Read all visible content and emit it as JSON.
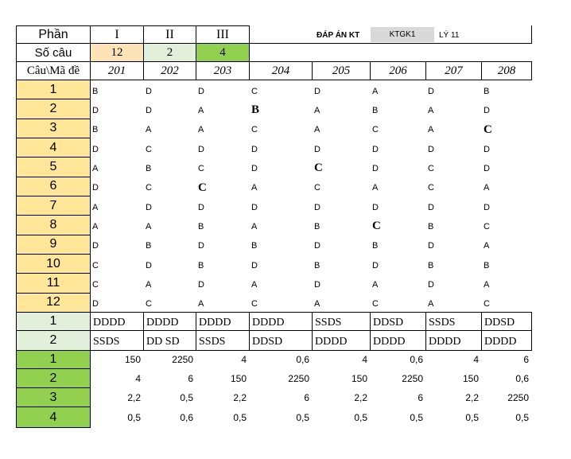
{
  "header": {
    "part_label": "Phần",
    "parts": [
      "I",
      "II",
      "III"
    ],
    "title": "ĐÁP ÁN KT",
    "exam": "KTGK1",
    "subject": "LÝ 11"
  },
  "count_row": {
    "label": "Số câu",
    "counts": [
      12,
      2,
      4
    ]
  },
  "code_row": {
    "label": "Câu\\Mã đề",
    "codes": [
      "201",
      "202",
      "203",
      "204",
      "205",
      "206",
      "207",
      "208"
    ]
  },
  "mc": {
    "rows": [
      {
        "question": "1",
        "answers": [
          "B",
          "D",
          "D",
          "C",
          "D",
          "A",
          "D",
          "B"
        ]
      },
      {
        "question": "2",
        "answers": [
          "D",
          "D",
          "A",
          "B",
          "A",
          "B",
          "A",
          "D"
        ]
      },
      {
        "question": "3",
        "answers": [
          "B",
          "A",
          "A",
          "C",
          "A",
          "C",
          "A",
          "C"
        ]
      },
      {
        "question": "4",
        "answers": [
          "D",
          "C",
          "D",
          "D",
          "D",
          "D",
          "D",
          "D"
        ]
      },
      {
        "question": "5",
        "answers": [
          "A",
          "B",
          "C",
          "D",
          "C",
          "D",
          "C",
          "D"
        ]
      },
      {
        "question": "6",
        "answers": [
          "D",
          "C",
          "C",
          "A",
          "C",
          "A",
          "C",
          "A"
        ]
      },
      {
        "question": "7",
        "answers": [
          "A",
          "D",
          "D",
          "D",
          "D",
          "D",
          "D",
          "D"
        ]
      },
      {
        "question": "8",
        "answers": [
          "A",
          "A",
          "B",
          "A",
          "B",
          "C",
          "B",
          "C"
        ]
      },
      {
        "question": "9",
        "answers": [
          "D",
          "B",
          "D",
          "B",
          "D",
          "B",
          "D",
          "A"
        ]
      },
      {
        "question": "10",
        "answers": [
          "C",
          "D",
          "B",
          "D",
          "B",
          "D",
          "B",
          "B"
        ]
      },
      {
        "question": "11",
        "answers": [
          "C",
          "A",
          "D",
          "A",
          "D",
          "A",
          "D",
          "A"
        ]
      },
      {
        "question": "12",
        "answers": [
          "D",
          "C",
          "A",
          "C",
          "A",
          "C",
          "A",
          "C"
        ]
      }
    ]
  },
  "tf": {
    "rows": [
      {
        "question": "1",
        "answers": [
          "DDDD",
          "DDDD",
          "DDDD",
          "DDDD",
          "SSDS",
          "DDSD",
          "SSDS",
          "DDSD"
        ]
      },
      {
        "question": "2",
        "answers": [
          "SSDS",
          "DD SD",
          "SSDS",
          "DDSD",
          "DDDD",
          "DDDD",
          "DDDD",
          "DDDD"
        ]
      }
    ]
  },
  "short": {
    "rows": [
      {
        "question": "1",
        "answers": [
          "150",
          "2250",
          "4",
          "0,6",
          "4",
          "0,6",
          "4",
          "6"
        ]
      },
      {
        "question": "2",
        "answers": [
          "4",
          "6",
          "150",
          "2250",
          "150",
          "2250",
          "150",
          "0,6"
        ]
      },
      {
        "question": "3",
        "answers": [
          "2,2",
          "0,5",
          "2,2",
          "6",
          "2,2",
          "6",
          "2,2",
          "2250"
        ]
      },
      {
        "question": "4",
        "answers": [
          "0,5",
          "0,6",
          "0,5",
          "0,5",
          "0,5",
          "0,5",
          "0,5",
          "0,5"
        ]
      }
    ]
  }
}
